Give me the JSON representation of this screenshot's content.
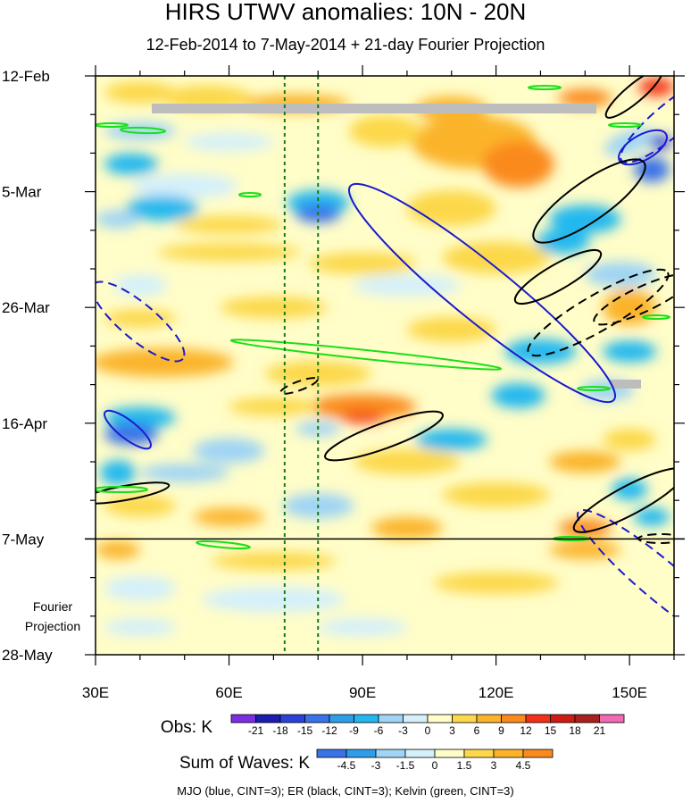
{
  "chart_data": {
    "type": "heatmap",
    "title": "HIRS UTWV anomalies: 10N - 20N",
    "subtitle": "12-Feb-2014 to 7-May-2014 + 21-day Fourier Projection",
    "x": {
      "ticks": [
        30,
        60,
        90,
        120,
        150
      ],
      "tick_labels": [
        "30E",
        "60E",
        "90E",
        "120E",
        "150E"
      ],
      "range": [
        30,
        160
      ],
      "units": "degrees longitude"
    },
    "y": {
      "ticks": [
        "2014-02-12",
        "2014-03-05",
        "2014-03-26",
        "2014-04-16",
        "2014-05-07",
        "2014-05-28"
      ],
      "tick_labels": [
        "12-Feb",
        "5-Mar",
        "26-Mar",
        "16-Apr",
        "7-May",
        "28-May"
      ],
      "range": [
        "2014-02-12",
        "2014-05-28"
      ],
      "orientation": "time increases downward"
    },
    "projection_divider": "2014-05-07",
    "projection_label": [
      "Fourier",
      "Projection"
    ],
    "reference_longitudes": [
      72.5,
      80
    ],
    "colorbars": [
      {
        "title": "Obs: K",
        "levels": [
          "-21",
          "-18",
          "-15",
          "-12",
          "-9",
          "-6",
          "-3",
          "0",
          "3",
          "6",
          "9",
          "12",
          "15",
          "18",
          "21"
        ],
        "colors": [
          "#7b2fe0",
          "#1c1cb0",
          "#2a42d8",
          "#3a72e8",
          "#2e9ee8",
          "#22b8ef",
          "#9fd4f5",
          "#d4f0fb",
          "#fffdc8",
          "#fcd84a",
          "#fbb42a",
          "#fa8a1e",
          "#f43018",
          "#d01a14",
          "#a82020",
          "#f06bb4"
        ]
      },
      {
        "title": "Sum of Waves: K",
        "levels": [
          "-4.5",
          "-3",
          "-1.5",
          "0",
          "1.5",
          "3",
          "4.5"
        ],
        "colors": [
          "#3a72e8",
          "#2e9ee8",
          "#9fd4f5",
          "#d4f0fb",
          "#fffdc8",
          "#fcd84a",
          "#fbb42a",
          "#fa8a1e"
        ]
      }
    ],
    "wave_legend": "MJO (blue, CINT=3); ER (black, CINT=3); Kelvin (green, CINT=3)",
    "series": [
      {
        "name": "MJO",
        "color": "#1a1ad0"
      },
      {
        "name": "ER",
        "color": "#000000"
      },
      {
        "name": "Kelvin",
        "color": "#18e018"
      }
    ]
  }
}
